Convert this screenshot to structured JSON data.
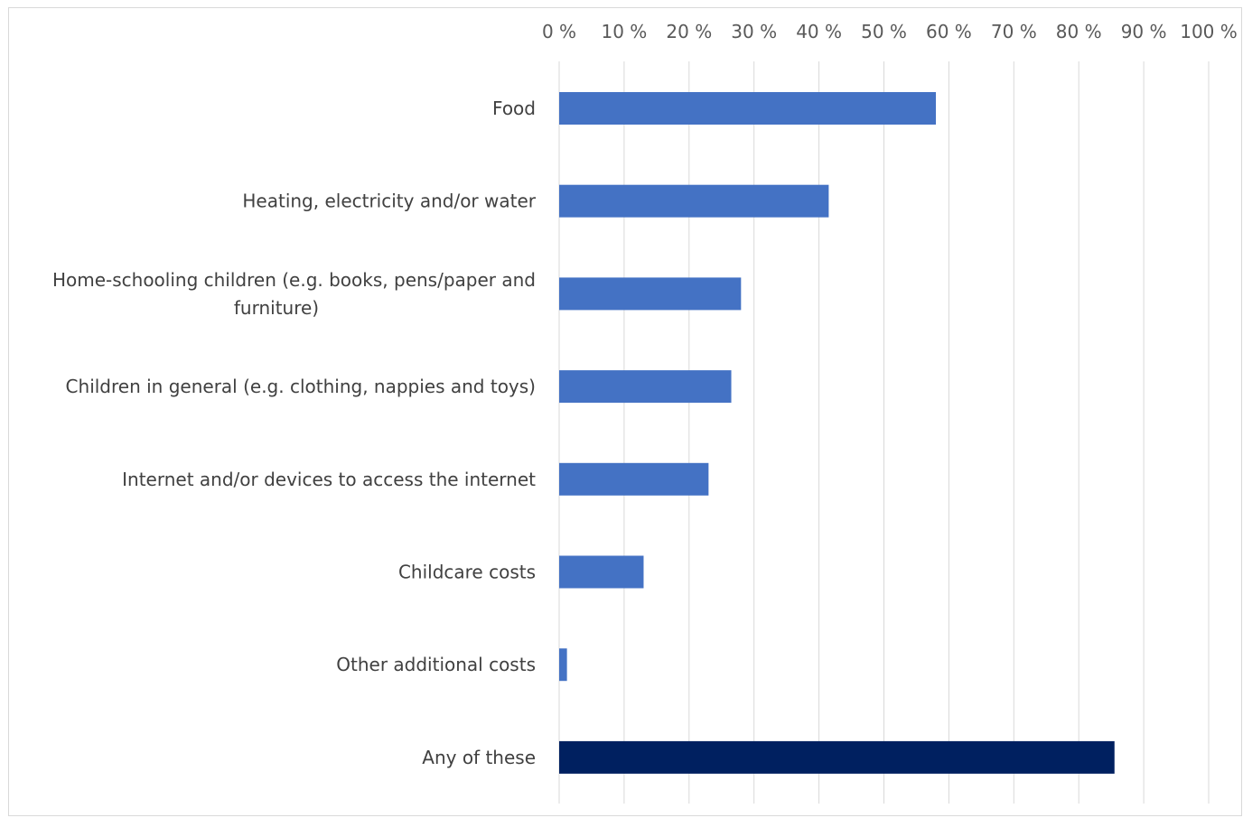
{
  "chart_data": {
    "type": "bar",
    "orientation": "horizontal",
    "x_tick_labels": [
      "0 %",
      "10 %",
      "20 %",
      "30 %",
      "40 %",
      "50 %",
      "60 %",
      "70 %",
      "80 %",
      "90 %",
      "100 %"
    ],
    "xlim": [
      0,
      100
    ],
    "x_axis_position": "top",
    "grid": true,
    "legend": "none",
    "bars": [
      {
        "label": [
          "Food"
        ],
        "value": 58,
        "color": "#4472c4"
      },
      {
        "label": [
          "Heating, electricity and/or water"
        ],
        "value": 41.5,
        "color": "#4472c4"
      },
      {
        "label": [
          "Home-schooling children (e.g. books, pens/paper and",
          "furniture)"
        ],
        "value": 28,
        "color": "#4472c4"
      },
      {
        "label": [
          "Children in general (e.g. clothing, nappies and toys)"
        ],
        "value": 26.5,
        "color": "#4472c4"
      },
      {
        "label": [
          "Internet and/or devices to access the internet"
        ],
        "value": 23,
        "color": "#4472c4"
      },
      {
        "label": [
          "Childcare costs"
        ],
        "value": 13,
        "color": "#4472c4"
      },
      {
        "label": [
          "Other additional costs "
        ],
        "value": 1.2,
        "color": "#4472c4"
      },
      {
        "label": [
          "Any of these"
        ],
        "value": 85.5,
        "color": "#002060"
      }
    ]
  }
}
